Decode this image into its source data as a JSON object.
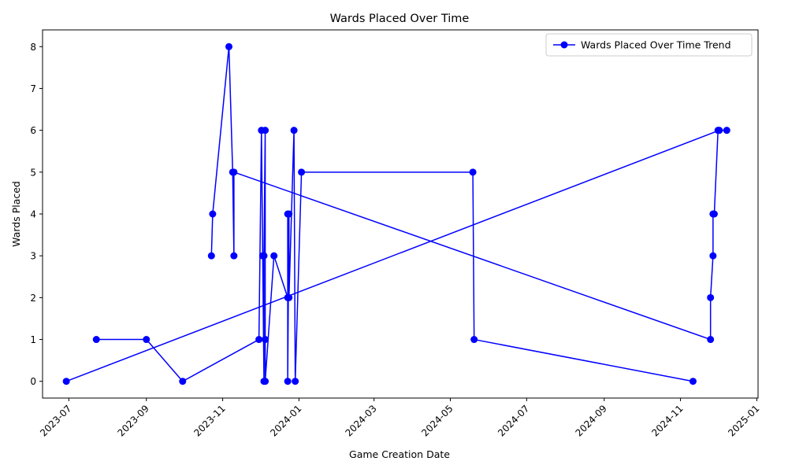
{
  "chart_data": {
    "type": "line",
    "title": "Wards Placed Over Time",
    "xlabel": "Game Creation Date",
    "ylabel": "Wards Placed",
    "xlim": [
      "2023-06-10",
      "2025-01-02"
    ],
    "ylim": [
      -0.4,
      8.4
    ],
    "x_ticks": [
      "2023-07",
      "2023-09",
      "2023-11",
      "2024-01",
      "2024-03",
      "2024-05",
      "2024-07",
      "2024-09",
      "2024-11",
      "2025-01"
    ],
    "y_ticks": [
      0,
      1,
      2,
      3,
      4,
      5,
      6,
      7,
      8
    ],
    "grid": false,
    "legend_position": "top-right",
    "color": "#0000ff",
    "series": [
      {
        "name": "Wards Placed Over Time Trend",
        "points": [
          {
            "x": "2023-06-29",
            "y": 0
          },
          {
            "x": "2024-12-02",
            "y": 6
          },
          {
            "x": "2024-12-08",
            "y": 6
          }
        ]
      },
      {
        "name": "",
        "points": [
          {
            "x": "2023-07-23",
            "y": 1
          },
          {
            "x": "2023-09-01",
            "y": 1
          },
          {
            "x": "2023-09-30",
            "y": 0
          },
          {
            "x": "2023-11-30",
            "y": 1
          },
          {
            "x": "2023-12-02",
            "y": 6
          },
          {
            "x": "2023-12-03",
            "y": 3
          },
          {
            "x": "2023-12-04",
            "y": 0
          },
          {
            "x": "2023-12-04",
            "y": 3
          },
          {
            "x": "2023-12-05",
            "y": 6
          },
          {
            "x": "2023-12-05",
            "y": 1
          },
          {
            "x": "2023-12-05",
            "y": 0
          },
          {
            "x": "2023-12-12",
            "y": 3
          },
          {
            "x": "2023-12-23",
            "y": 2
          },
          {
            "x": "2023-12-23",
            "y": 4
          },
          {
            "x": "2023-12-23",
            "y": 0
          },
          {
            "x": "2023-12-24",
            "y": 4
          },
          {
            "x": "2023-12-24",
            "y": 2
          },
          {
            "x": "2023-12-28",
            "y": 6
          },
          {
            "x": "2023-12-29",
            "y": 0
          },
          {
            "x": "2024-01-03",
            "y": 5
          },
          {
            "x": "2024-05-19",
            "y": 5
          },
          {
            "x": "2024-05-20",
            "y": 1
          },
          {
            "x": "2024-11-11",
            "y": 0
          }
        ]
      },
      {
        "name": "",
        "points": [
          {
            "x": "2023-10-23",
            "y": 3
          },
          {
            "x": "2023-10-24",
            "y": 4
          },
          {
            "x": "2023-11-06",
            "y": 8
          },
          {
            "x": "2023-11-09",
            "y": 5
          },
          {
            "x": "2023-11-10",
            "y": 3
          },
          {
            "x": "2023-11-10",
            "y": 5
          },
          {
            "x": "2024-11-25",
            "y": 1
          },
          {
            "x": "2024-11-25",
            "y": 2
          },
          {
            "x": "2024-11-27",
            "y": 3
          },
          {
            "x": "2024-11-27",
            "y": 4
          },
          {
            "x": "2024-11-28",
            "y": 4
          },
          {
            "x": "2024-12-01",
            "y": 6
          }
        ]
      }
    ]
  }
}
